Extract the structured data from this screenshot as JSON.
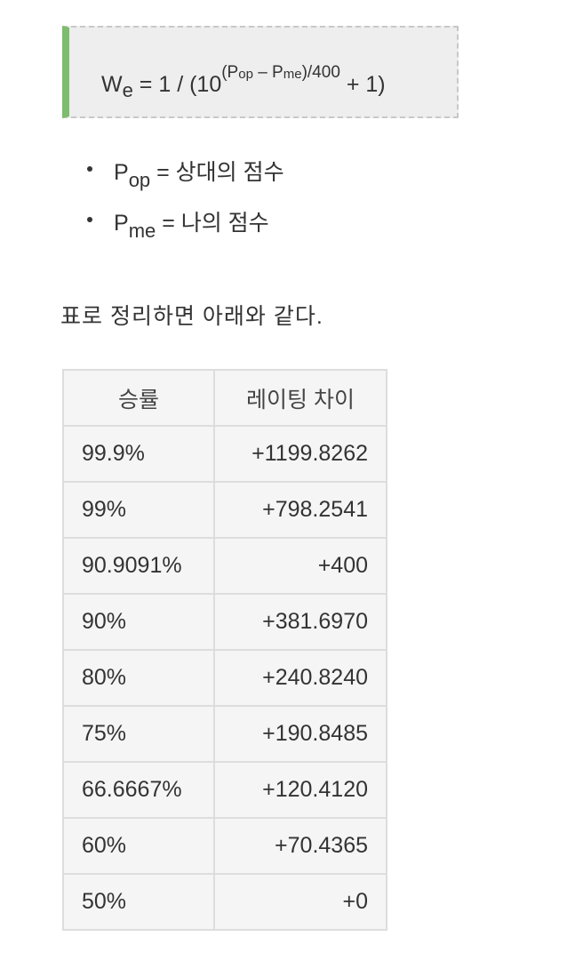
{
  "formula": {
    "w": "W",
    "w_sub": "e",
    "eq": " = 1 / (10",
    "p1": "(P",
    "p1_sub": "op",
    "minus": " – P",
    "p2_sub": "me",
    "tail": ")/400",
    "end": " + 1)"
  },
  "variables": [
    {
      "symbol": "P",
      "sub": "op",
      "text": " = 상대의 점수"
    },
    {
      "symbol": "P",
      "sub": "me",
      "text": " = 나의 점수"
    }
  ],
  "summary_text": "표로 정리하면 아래와 같다.",
  "table": {
    "headers": [
      "승률",
      "레이팅 차이"
    ],
    "rows": [
      [
        "99.9%",
        "+1199.8262"
      ],
      [
        "99%",
        "+798.2541"
      ],
      [
        "90.9091%",
        "+400"
      ],
      [
        "90%",
        "+381.6970"
      ],
      [
        "80%",
        "+240.8240"
      ],
      [
        "75%",
        "+190.8485"
      ],
      [
        "66.6667%",
        "+120.4120"
      ],
      [
        "60%",
        "+70.4365"
      ],
      [
        "50%",
        "+0"
      ]
    ]
  },
  "colors": {
    "accent_bar": "#7cbd6e",
    "box_bg": "#eeeeee",
    "table_bg": "#f5f5f5"
  }
}
